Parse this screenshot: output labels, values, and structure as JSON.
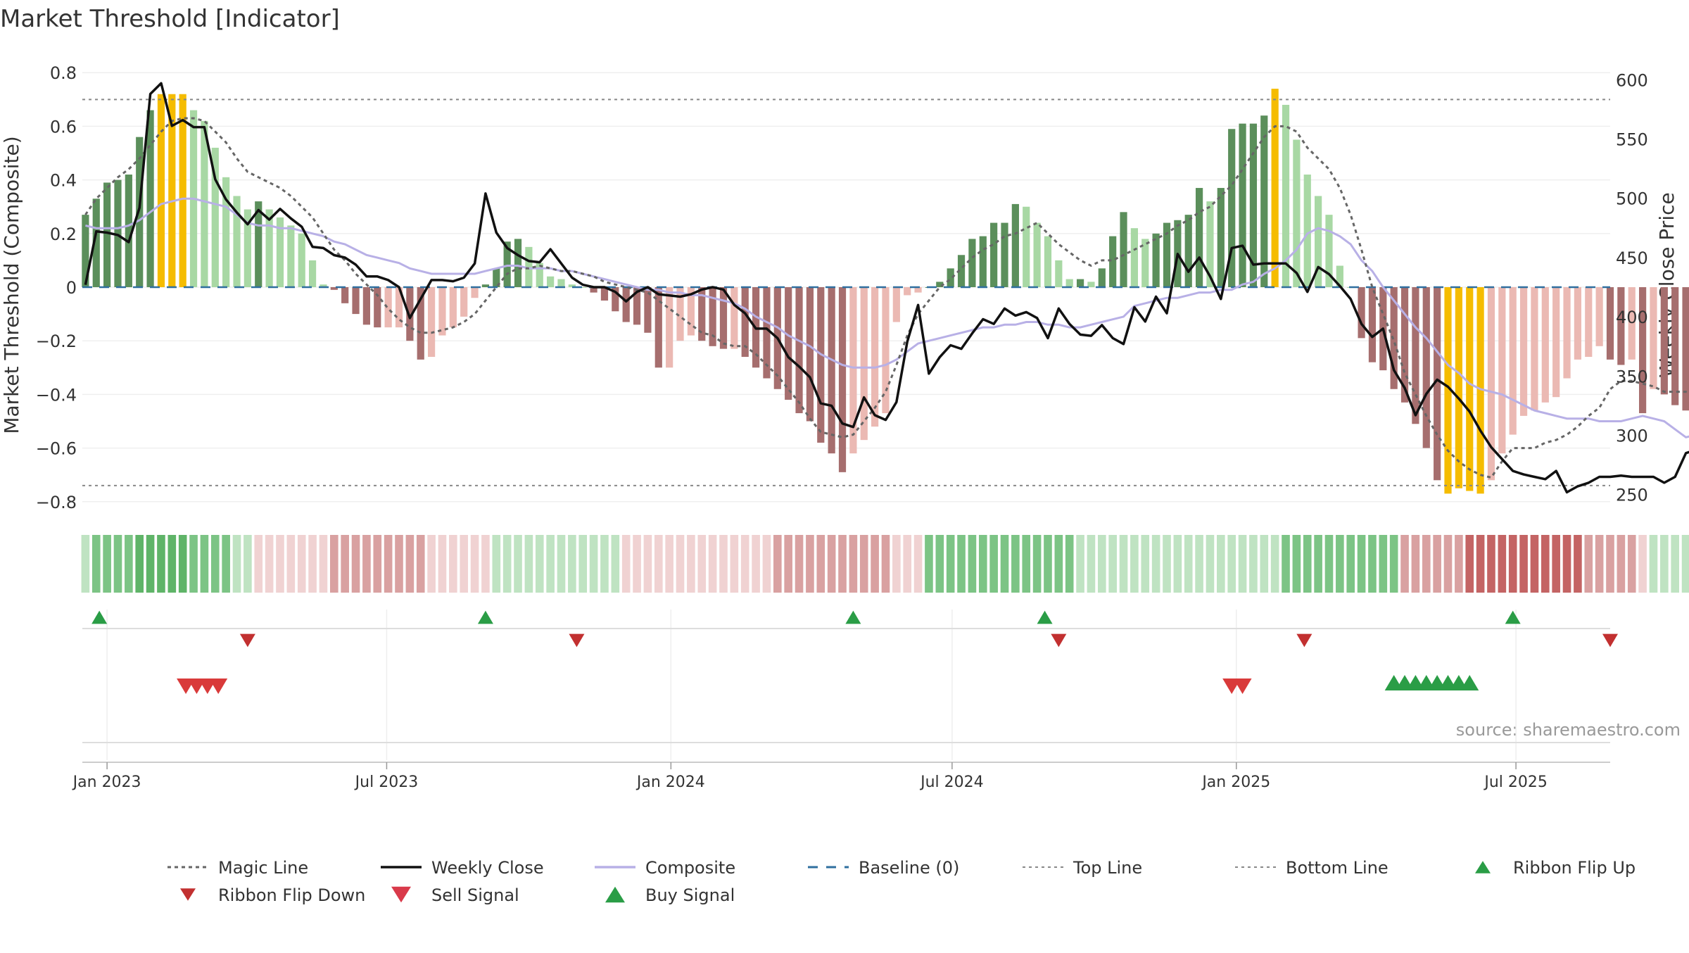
{
  "title": "Market Threshold [Indicator]",
  "source_text": "source: sharemaestro.com",
  "colors": {
    "strong_green": "#5b8f5b",
    "light_green": "#a8d8a4",
    "strong_red": "#a66e6e",
    "light_red": "#ebb9b3",
    "extreme": "#f5bc00",
    "weekly_close": "#111111",
    "composite": "#b8b0e6",
    "magic_line": "#666666",
    "baseline": "#2f6f9f",
    "buy": "#2a9d46",
    "sell": "#d93a3a"
  },
  "chart_data": {
    "type": "bar",
    "title": "Market Threshold [Indicator]",
    "ylabel": "Market Threshold (Composite)",
    "y2label": "Weekly Close Price",
    "ylim": [
      -0.84,
      0.84
    ],
    "y2lim": [
      235,
      615
    ],
    "yticks": [
      0.8,
      0.6,
      0.4,
      0.2,
      0,
      -0.2,
      -0.4,
      -0.6,
      -0.8
    ],
    "ytick_labels": [
      "0.8",
      "0.6",
      "0.4",
      "0.2",
      "0",
      "−0.2",
      "−0.4",
      "−0.6",
      "−0.8"
    ],
    "y2ticks": [
      600,
      550,
      500,
      450,
      400,
      350,
      300,
      250
    ],
    "y2tick_labels": [
      "600",
      "550",
      "500",
      "450",
      "400",
      "350",
      "300",
      "250"
    ],
    "top_line": 0.7,
    "bottom_line": -0.74,
    "x_start": "2022-12-16",
    "x_end": "2025-08-31",
    "xticks": [
      {
        "date": "2023-01-01",
        "label": "Jan 2023"
      },
      {
        "date": "2023-07-01",
        "label": "Jul 2023"
      },
      {
        "date": "2024-01-01",
        "label": "Jan 2024"
      },
      {
        "date": "2024-07-01",
        "label": "Jul 2024"
      },
      {
        "date": "2025-01-01",
        "label": "Jan 2025"
      },
      {
        "date": "2025-07-01",
        "label": "Jul 2025"
      }
    ],
    "weeks": {
      "start": "2022-12-18",
      "step_days": 7,
      "composite_bars": [
        0.27,
        0.33,
        0.39,
        0.4,
        0.42,
        0.56,
        0.66,
        0.72,
        0.72,
        0.72,
        0.66,
        0.62,
        0.52,
        0.41,
        0.34,
        0.29,
        0.32,
        0.29,
        0.26,
        0.23,
        0.2,
        0.1,
        0.01,
        -0.01,
        -0.06,
        -0.1,
        -0.14,
        -0.15,
        -0.15,
        -0.15,
        -0.2,
        -0.27,
        -0.26,
        -0.18,
        -0.15,
        -0.11,
        -0.04,
        0.01,
        0.07,
        0.17,
        0.18,
        0.15,
        0.09,
        0.04,
        0.03,
        0.01,
        0,
        -0.02,
        -0.05,
        -0.09,
        -0.13,
        -0.14,
        -0.17,
        -0.3,
        -0.3,
        -0.2,
        -0.18,
        -0.2,
        -0.22,
        -0.23,
        -0.23,
        -0.26,
        -0.3,
        -0.34,
        -0.38,
        -0.42,
        -0.47,
        -0.5,
        -0.58,
        -0.62,
        -0.69,
        -0.62,
        -0.57,
        -0.52,
        -0.47,
        -0.13,
        -0.03,
        -0.02,
        0,
        0.02,
        0.07,
        0.12,
        0.18,
        0.19,
        0.24,
        0.24,
        0.31,
        0.3,
        0.24,
        0.19,
        0.1,
        0.03,
        0.03,
        0.02,
        0.07,
        0.19,
        0.28,
        0.22,
        0.18,
        0.2,
        0.24,
        0.25,
        0.27,
        0.37,
        0.32,
        0.37,
        0.59,
        0.61,
        0.61,
        0.64,
        0.74,
        0.68,
        0.55,
        0.42,
        0.34,
        0.27,
        0.08,
        0,
        -0.19,
        -0.28,
        -0.31,
        -0.38,
        -0.43,
        -0.51,
        -0.6,
        -0.72,
        -0.77,
        -0.75,
        -0.76,
        -0.77,
        -0.72,
        -0.62,
        -0.55,
        -0.48,
        -0.46,
        -0.43,
        -0.41,
        -0.34,
        -0.27,
        -0.26,
        -0.22,
        -0.27,
        -0.29,
        -0.27,
        -0.47,
        -0.38,
        -0.4,
        -0.44,
        -0.46
      ],
      "weekly_close": [
        427,
        472,
        471,
        469,
        463,
        492,
        588,
        597,
        561,
        566,
        560,
        560,
        516,
        499,
        488,
        478,
        490,
        482,
        491,
        483,
        476,
        459,
        458,
        452,
        450,
        444,
        434,
        434,
        431,
        425,
        399,
        415,
        431,
        431,
        430,
        433,
        445,
        504,
        471,
        458,
        452,
        447,
        446,
        457,
        445,
        433,
        427,
        425,
        425,
        421,
        413,
        421,
        425,
        419,
        418,
        417,
        419,
        423,
        425,
        423,
        410,
        403,
        390,
        390,
        382,
        366,
        358,
        349,
        327,
        325,
        310,
        307,
        332,
        317,
        313,
        328,
        379,
        410,
        352,
        366,
        376,
        373,
        386,
        398,
        394,
        407,
        401,
        404,
        399,
        382,
        407,
        394,
        385,
        384,
        393,
        382,
        377,
        408,
        396,
        417,
        403,
        453,
        438,
        450,
        434,
        415,
        458,
        460,
        444,
        445,
        445,
        445,
        437,
        421,
        442,
        436,
        426,
        415,
        394,
        383,
        390,
        355,
        340,
        317,
        335,
        347,
        341,
        331,
        320,
        304,
        290,
        280,
        270,
        267,
        265,
        263,
        270,
        252,
        257,
        260,
        265,
        265,
        266,
        265,
        265,
        265,
        260,
        265,
        285,
        288,
        282,
        287,
        279,
        271
      ],
      "composite_line": [
        0.23,
        0.22,
        0.22,
        0.22,
        0.23,
        0.25,
        0.28,
        0.31,
        0.32,
        0.33,
        0.33,
        0.32,
        0.31,
        0.3,
        0.27,
        0.24,
        0.23,
        0.23,
        0.22,
        0.22,
        0.21,
        0.2,
        0.19,
        0.17,
        0.16,
        0.14,
        0.12,
        0.11,
        0.1,
        0.09,
        0.07,
        0.06,
        0.05,
        0.05,
        0.05,
        0.05,
        0.05,
        0.06,
        0.07,
        0.08,
        0.08,
        0.07,
        0.07,
        0.07,
        0.06,
        0.06,
        0.05,
        0.04,
        0.03,
        0.02,
        0.01,
        0,
        -0.01,
        -0.01,
        -0.02,
        -0.02,
        -0.03,
        -0.03,
        -0.04,
        -0.05,
        -0.06,
        -0.08,
        -0.11,
        -0.13,
        -0.15,
        -0.18,
        -0.2,
        -0.22,
        -0.25,
        -0.27,
        -0.29,
        -0.3,
        -0.3,
        -0.3,
        -0.29,
        -0.27,
        -0.24,
        -0.21,
        -0.2,
        -0.19,
        -0.18,
        -0.17,
        -0.16,
        -0.15,
        -0.15,
        -0.14,
        -0.14,
        -0.13,
        -0.13,
        -0.14,
        -0.14,
        -0.15,
        -0.15,
        -0.14,
        -0.13,
        -0.12,
        -0.11,
        -0.07,
        -0.06,
        -0.05,
        -0.04,
        -0.04,
        -0.03,
        -0.02,
        -0.02,
        -0.01,
        -0.01,
        0.01,
        0.02,
        0.05,
        0.07,
        0.1,
        0.14,
        0.2,
        0.22,
        0.21,
        0.19,
        0.16,
        0.1,
        0.06,
        0,
        -0.05,
        -0.1,
        -0.15,
        -0.19,
        -0.24,
        -0.29,
        -0.32,
        -0.36,
        -0.38,
        -0.39,
        -0.4,
        -0.42,
        -0.44,
        -0.46,
        -0.47,
        -0.48,
        -0.49,
        -0.49,
        -0.49,
        -0.5,
        -0.5,
        -0.5,
        -0.49,
        -0.48,
        -0.49,
        -0.5,
        -0.53,
        -0.56,
        -0.55,
        -0.55
      ],
      "magic_line": [
        0.27,
        0.33,
        0.37,
        0.41,
        0.44,
        0.48,
        0.53,
        0.58,
        0.62,
        0.63,
        0.63,
        0.62,
        0.58,
        0.54,
        0.48,
        0.43,
        0.41,
        0.39,
        0.37,
        0.34,
        0.3,
        0.26,
        0.2,
        0.14,
        0.1,
        0.05,
        0.01,
        -0.03,
        -0.08,
        -0.12,
        -0.15,
        -0.17,
        -0.17,
        -0.16,
        -0.15,
        -0.13,
        -0.1,
        -0.05,
        0,
        0.05,
        0.07,
        0.07,
        0.08,
        0.07,
        0.06,
        0.06,
        0.05,
        0.04,
        0.02,
        0.01,
        0,
        -0.01,
        -0.02,
        -0.05,
        -0.08,
        -0.11,
        -0.14,
        -0.17,
        -0.18,
        -0.21,
        -0.22,
        -0.22,
        -0.25,
        -0.29,
        -0.33,
        -0.38,
        -0.43,
        -0.49,
        -0.54,
        -0.55,
        -0.56,
        -0.55,
        -0.5,
        -0.45,
        -0.39,
        -0.29,
        -0.18,
        -0.1,
        -0.05,
        0,
        0.03,
        0.07,
        0.11,
        0.14,
        0.16,
        0.19,
        0.2,
        0.22,
        0.24,
        0.2,
        0.16,
        0.13,
        0.1,
        0.08,
        0.1,
        0.1,
        0.12,
        0.14,
        0.16,
        0.18,
        0.2,
        0.23,
        0.25,
        0.28,
        0.3,
        0.34,
        0.38,
        0.44,
        0.5,
        0.56,
        0.6,
        0.6,
        0.58,
        0.52,
        0.48,
        0.44,
        0.37,
        0.27,
        0.14,
        0,
        -0.1,
        -0.2,
        -0.32,
        -0.4,
        -0.48,
        -0.55,
        -0.61,
        -0.65,
        -0.68,
        -0.7,
        -0.71,
        -0.65,
        -0.6,
        -0.6,
        -0.6,
        -0.58,
        -0.57,
        -0.55,
        -0.52,
        -0.48,
        -0.45,
        -0.38,
        -0.35,
        -0.35,
        -0.36,
        -0.37,
        -0.39,
        -0.39,
        -0.39,
        -0.4,
        -0.4
      ],
      "ribbon_levels": [
        1,
        2,
        2,
        2,
        2,
        3,
        3,
        3,
        3,
        3,
        2,
        2,
        2,
        2,
        1,
        1,
        -1,
        -1,
        -1,
        -1,
        -1,
        -1,
        -1,
        -2,
        -2,
        -2,
        -2,
        -2,
        -2,
        -2,
        -2,
        -2,
        -1,
        -1,
        -1,
        -1,
        -1,
        -1,
        1,
        1,
        1,
        1,
        1,
        1,
        1,
        1,
        1,
        1,
        1,
        1,
        -1,
        -1,
        -1,
        -1,
        -1,
        -1,
        -1,
        -1,
        -1,
        -1,
        -1,
        -1,
        -1,
        -1,
        -2,
        -2,
        -2,
        -2,
        -2,
        -2,
        -2,
        -2,
        -2,
        -2,
        -2,
        -1,
        -1,
        -1,
        2,
        2,
        2,
        2,
        2,
        2,
        2,
        2,
        2,
        2,
        2,
        2,
        2,
        2,
        1,
        1,
        1,
        1,
        1,
        1,
        1,
        1,
        1,
        1,
        1,
        1,
        1,
        1,
        1,
        1,
        1,
        1,
        1,
        2,
        2,
        2,
        2,
        2,
        2,
        2,
        2,
        2,
        2,
        2,
        -2,
        -2,
        -2,
        -2,
        -2,
        -2,
        -3,
        -3,
        -3,
        -3,
        -3,
        -3,
        -3,
        -3,
        -3,
        -3,
        -3,
        -2,
        -2,
        -2,
        -2,
        -2,
        -1,
        1,
        1,
        1,
        1,
        1,
        1,
        1,
        1,
        1,
        1,
        1,
        -1
      ]
    },
    "series": [
      {
        "name": "Magic Line",
        "style": "dotted",
        "color": "#666666"
      },
      {
        "name": "Weekly Close",
        "style": "solid",
        "color": "#111111"
      },
      {
        "name": "Composite",
        "style": "solid",
        "color": "#b8b0e6"
      },
      {
        "name": "Baseline (0)",
        "style": "dashed",
        "color": "#2f6f9f"
      },
      {
        "name": "Top Line",
        "style": "dotted-gray",
        "color": "#888888"
      },
      {
        "name": "Bottom Line",
        "style": "dotted-gray",
        "color": "#888888"
      },
      {
        "name": "Ribbon Flip Up",
        "style": "marker-up",
        "color": "#2a9d46"
      },
      {
        "name": "Ribbon Flip Down",
        "style": "marker-down",
        "color": "#c23030"
      },
      {
        "name": "Sell Signal",
        "style": "marker-down-big",
        "color": "#d93a4a"
      },
      {
        "name": "Buy Signal",
        "style": "marker-up-big",
        "color": "#2a9d46"
      }
    ],
    "ribbon_flip_up_dates": [
      "2022-12-27",
      "2023-09-03",
      "2024-04-28",
      "2024-08-30",
      "2025-06-29"
    ],
    "ribbon_flip_down_dates": [
      "2023-04-02",
      "2023-11-01",
      "2024-09-08",
      "2025-02-14",
      "2025-08-31"
    ],
    "sell_signal_dates": [
      "2023-02-21",
      "2023-02-28",
      "2023-03-07",
      "2023-03-14",
      "2024-12-29",
      "2025-01-05"
    ],
    "buy_signal_dates": [
      "2025-04-13",
      "2025-04-20",
      "2025-04-27",
      "2025-05-04",
      "2025-05-11",
      "2025-05-18",
      "2025-05-25",
      "2025-06-01"
    ],
    "legend_position": "bottom",
    "grid": true
  }
}
